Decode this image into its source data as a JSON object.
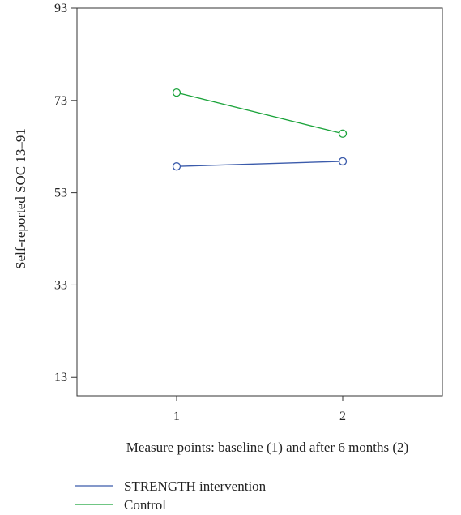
{
  "chart_data": {
    "type": "line",
    "xlabel": "Measure points: baseline (1) and after 6 months (2)",
    "ylabel": "Self-reported SOC 13–91",
    "x": [
      1,
      2
    ],
    "xlim": [
      0.4,
      2.6
    ],
    "ylim": [
      9,
      93
    ],
    "xticks": [
      1,
      2
    ],
    "xtick_labels": [
      "1",
      "2"
    ],
    "yticks": [
      13,
      33,
      53,
      73,
      93
    ],
    "ytick_labels": [
      "13",
      "33",
      "53",
      "73",
      "93"
    ],
    "grid": false,
    "legend_placement": "bottom-left",
    "series": [
      {
        "name": "STRENGTH intervention",
        "values": [
          58.7,
          59.8
        ],
        "color": "#3b5bab"
      },
      {
        "name": "Control",
        "values": [
          74.7,
          65.8
        ],
        "color": "#1aa33a"
      }
    ]
  }
}
